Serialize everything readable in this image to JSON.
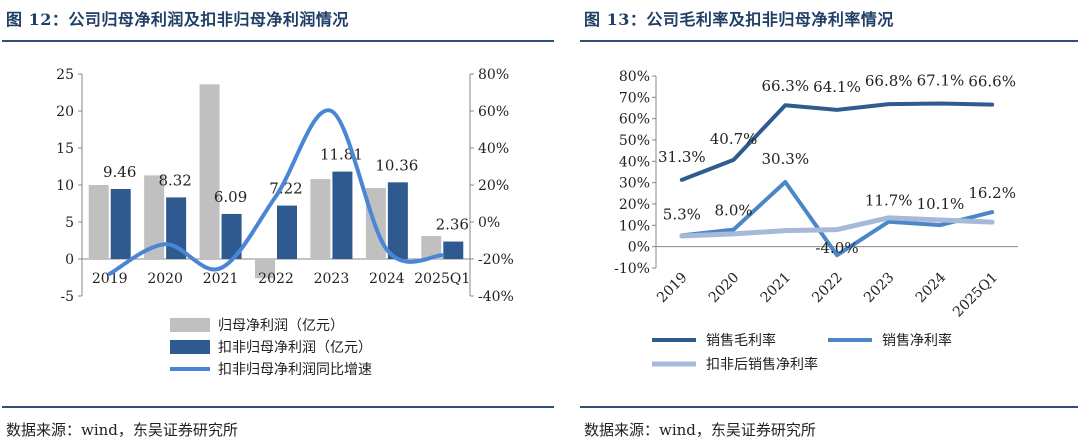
{
  "left_panel": {
    "title": "图 12：公司归母净利润及扣非归母净利润情况",
    "source": "数据来源：wind，东吴证券研究所"
  },
  "right_panel": {
    "title": "图 13：公司毛利率及扣非归母净利率情况",
    "source": "数据来源：wind，东吴证券研究所"
  },
  "colors": {
    "title_blue": "#1f3f66",
    "bar_gray": "#c0c0c0",
    "bar_navy": "#2f5a8f",
    "line_blue": "#4a86d4",
    "gross_margin": "#2e5c8e",
    "net_margin": "#4a86c8",
    "net_margin_excl": "#a6b9d8"
  },
  "chart_data": [
    {
      "type": "bar+line",
      "categories": [
        "2019",
        "2020",
        "2021",
        "2022",
        "2023",
        "2024",
        "2025Q1"
      ],
      "series": [
        {
          "name": "归母净利润（亿元）",
          "kind": "bar",
          "axis": "left",
          "values": [
            10.0,
            11.3,
            23.6,
            -2.6,
            10.8,
            9.6,
            3.1
          ],
          "labels": [
            "",
            "",
            "",
            "",
            "",
            "",
            ""
          ]
        },
        {
          "name": "扣非归母净利润（亿元）",
          "kind": "bar",
          "axis": "left",
          "values": [
            9.46,
            8.32,
            6.09,
            7.22,
            11.81,
            10.36,
            2.36
          ],
          "labels": [
            "9.46",
            "8.32",
            "6.09",
            "7.22",
            "11.81",
            "10.36",
            "2.36"
          ]
        },
        {
          "name": "扣非归母净利润同比增速",
          "kind": "line",
          "axis": "right",
          "values": [
            -28,
            -12,
            -25,
            14,
            60,
            -15,
            -18
          ]
        }
      ],
      "left_axis": {
        "min": -5,
        "max": 25,
        "ticks": [
          "-5",
          "0",
          "5",
          "10",
          "15",
          "20",
          "25"
        ]
      },
      "right_axis": {
        "min": -40,
        "max": 80,
        "ticks": [
          "-40%",
          "-20%",
          "0%",
          "20%",
          "40%",
          "60%",
          "80%"
        ]
      }
    },
    {
      "type": "line",
      "categories": [
        "2019",
        "2020",
        "2021",
        "2022",
        "2023",
        "2024",
        "2025Q1"
      ],
      "series": [
        {
          "name": "销售毛利率",
          "values": [
            31.3,
            40.7,
            66.3,
            64.1,
            66.8,
            67.1,
            66.6
          ],
          "labels": [
            "31.3%",
            "40.7%",
            "66.3%",
            "64.1%",
            "66.8%",
            "67.1%",
            "66.6%"
          ]
        },
        {
          "name": "销售净利率",
          "values": [
            5.3,
            8.0,
            30.3,
            -4.0,
            11.7,
            10.1,
            16.2
          ],
          "labels": [
            "5.3%",
            "8.0%",
            "30.3%",
            "-4.0%",
            "11.7%",
            "10.1%",
            "16.2%"
          ]
        },
        {
          "name": "扣非后销售净利率",
          "values": [
            5.0,
            6.0,
            7.5,
            8.0,
            13.5,
            12.5,
            11.5
          ]
        }
      ],
      "y_axis": {
        "min": -10,
        "max": 80,
        "ticks": [
          "-10%",
          "0%",
          "10%",
          "20%",
          "30%",
          "40%",
          "50%",
          "60%",
          "70%",
          "80%"
        ]
      }
    }
  ]
}
